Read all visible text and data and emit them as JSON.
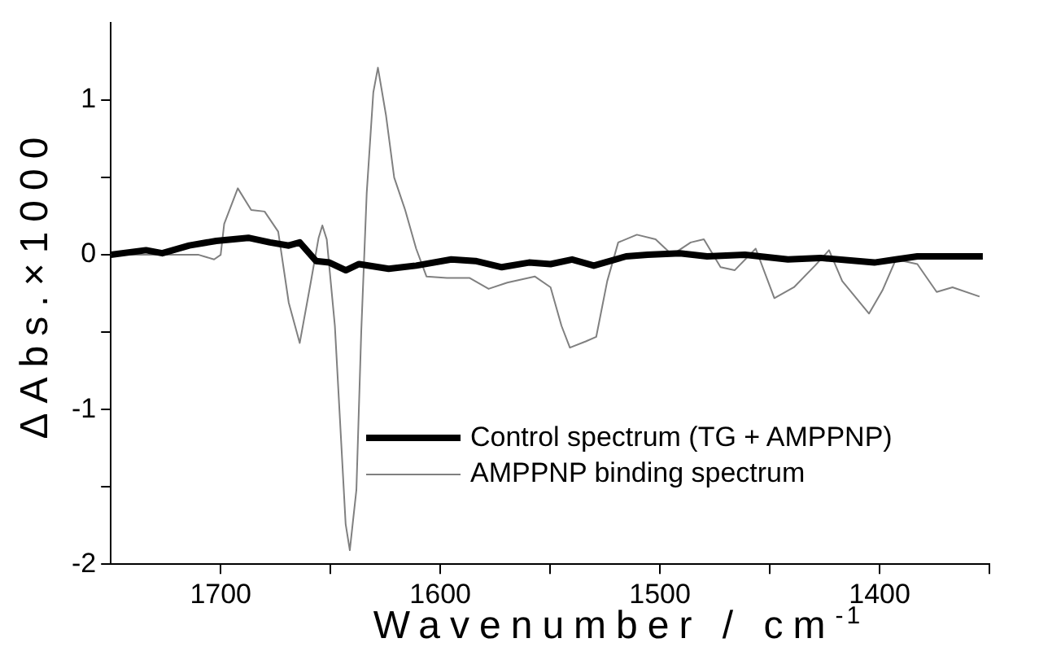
{
  "chart_data": {
    "type": "line",
    "xlabel": "Wavenumber / cm$^{-1}$",
    "ylabel": "ΔAbs.×1000",
    "xlim": [
      1750,
      1350
    ],
    "ylim": [
      -2,
      1.5
    ],
    "xticks": [
      1700,
      {
        "value": 1650,
        "label": null
      },
      1600,
      {
        "value": 1550,
        "label": null
      },
      1500,
      {
        "value": 1450,
        "label": null
      },
      1400,
      {
        "value": 1350,
        "label": null
      }
    ],
    "yticks": [
      -2,
      {
        "value": -1.5,
        "label": null
      },
      -1,
      {
        "value": -0.5,
        "label": null
      },
      0,
      {
        "value": 0.5,
        "label": null
      },
      1
    ],
    "legend": "bottom right",
    "series": [
      {
        "name": "Control spectrum (TG + AMPPNP)",
        "color": "#000000",
        "x": [
          1750,
          1734,
          1726.6,
          1714.3,
          1702,
          1687.4,
          1677.5,
          1669,
          1664,
          1656.6,
          1650.5,
          1643,
          1637,
          1623.5,
          1611,
          1595,
          1584,
          1572,
          1559.6,
          1549.8,
          1540,
          1530.1,
          1515.4,
          1505.6,
          1490.9,
          1478.5,
          1461.3,
          1441.7,
          1426.9,
          1402.4,
          1392.6,
          1382.8,
          1353
        ],
        "values": [
          0,
          0.03,
          0.01,
          0.06,
          0.09,
          0.11,
          0.08,
          0.06,
          0.08,
          -0.04,
          -0.05,
          -0.1,
          -0.06,
          -0.09,
          -0.07,
          -0.03,
          -0.04,
          -0.08,
          -0.05,
          -0.06,
          -0.03,
          -0.07,
          -0.01,
          0,
          0.01,
          -0.01,
          0,
          -0.03,
          -0.02,
          -0.05,
          -0.03,
          -0.01,
          -0.01
        ]
      },
      {
        "name": "AMPPNP binding spectrum",
        "color": "#808080",
        "x": [
          1750,
          1720,
          1710,
          1703,
          1700,
          1698.4,
          1692.2,
          1686.1,
          1680,
          1673.8,
          1669,
          1664,
          1659,
          1655.4,
          1653.7,
          1651.7,
          1648,
          1643.1,
          1641.2,
          1638.2,
          1636,
          1633.5,
          1630.5,
          1628.4,
          1624.7,
          1621,
          1616,
          1611,
          1606.3,
          1597,
          1586.6,
          1578,
          1569.5,
          1557,
          1549.8,
          1544.8,
          1541,
          1533.8,
          1529,
          1524,
          1519,
          1510.5,
          1502,
          1494.5,
          1486,
          1480,
          1472.4,
          1466,
          1456.4,
          1447.9,
          1439,
          1429.4,
          1423,
          1417,
          1404.8,
          1398.7,
          1392.6,
          1382.8,
          1374,
          1366.8,
          1354.5
        ],
        "values": [
          0,
          0,
          0,
          -0.03,
          0,
          0.2,
          0.43,
          0.29,
          0.28,
          0.15,
          -0.31,
          -0.57,
          -0.18,
          0.11,
          0.19,
          0.1,
          -0.46,
          -1.74,
          -1.91,
          -1.52,
          -0.5,
          0.4,
          1.05,
          1.21,
          0.9,
          0.5,
          0.29,
          0.04,
          -0.14,
          -0.15,
          -0.15,
          -0.22,
          -0.18,
          -0.14,
          -0.21,
          -0.46,
          -0.6,
          -0.56,
          -0.53,
          -0.17,
          0.08,
          0.13,
          0.1,
          0,
          0.08,
          0.1,
          -0.08,
          -0.1,
          0.04,
          -0.28,
          -0.21,
          -0.07,
          0.03,
          -0.17,
          -0.38,
          -0.23,
          -0.03,
          -0.06,
          -0.24,
          -0.21,
          -0.27
        ]
      }
    ]
  }
}
